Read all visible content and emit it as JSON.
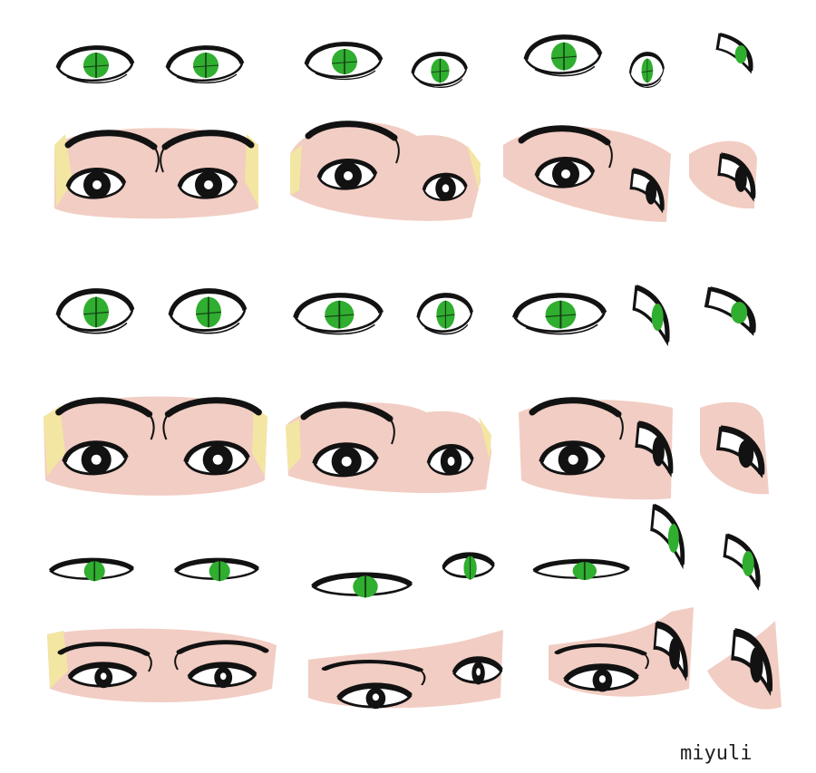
{
  "signature": "miyuli",
  "colors": {
    "background": "#ffffff",
    "skin": "#f2cdc3",
    "hair": "#f3e6a2",
    "iris": "#2fae2f",
    "ink": "#121212",
    "sclera": "#ffffff"
  },
  "sheet": {
    "rows": [
      {
        "name": "row-1",
        "kind": "iris-line",
        "views": [
          "front",
          "three-quarter",
          "profile"
        ]
      },
      {
        "name": "row-2",
        "kind": "face-color",
        "views": [
          "front",
          "three-quarter",
          "profile"
        ]
      },
      {
        "name": "row-3",
        "kind": "iris-line",
        "views": [
          "front",
          "three-quarter",
          "profile"
        ]
      },
      {
        "name": "row-4",
        "kind": "face-color",
        "views": [
          "front",
          "three-quarter",
          "profile"
        ]
      },
      {
        "name": "row-5",
        "kind": "iris-line",
        "views": [
          "front",
          "three-quarter",
          "profile"
        ]
      },
      {
        "name": "row-6",
        "kind": "face-color",
        "views": [
          "front",
          "three-quarter",
          "profile"
        ]
      }
    ]
  }
}
